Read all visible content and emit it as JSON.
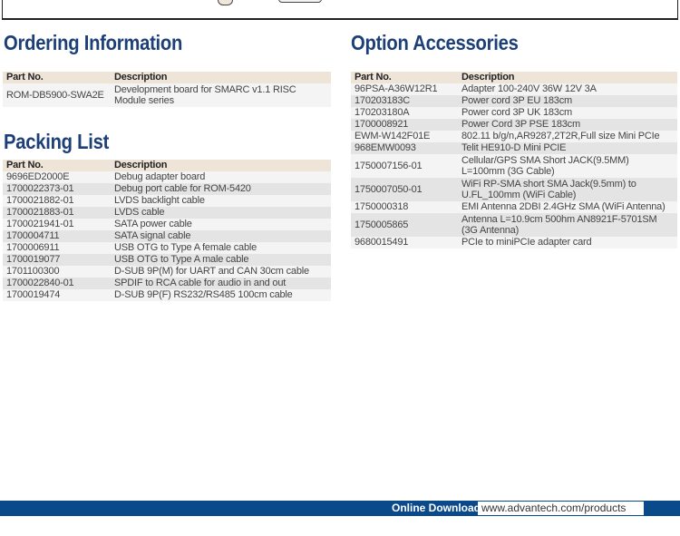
{
  "ordering": {
    "title": "Ordering Information",
    "headers": [
      "Part No.",
      "Description"
    ],
    "rows": [
      [
        "ROM-DB5900-SWA2E",
        "Development board for SMARC v1.1 RISC Module series"
      ]
    ]
  },
  "packing": {
    "title": "Packing List",
    "headers": [
      "Part No.",
      "Description"
    ],
    "rows": [
      [
        "9696ED2000E",
        "Debug adapter board"
      ],
      [
        "1700022373-01",
        "Debug port cable for ROM-5420"
      ],
      [
        "1700021882-01",
        "LVDS backlight cable"
      ],
      [
        "1700021883-01",
        "LVDS cable"
      ],
      [
        "1700021941-01",
        "SATA power cable"
      ],
      [
        "1700004711",
        "SATA signal cable"
      ],
      [
        "1700006911",
        "USB OTG to Type A female cable"
      ],
      [
        "1700019077",
        "USB OTG to Type A male cable"
      ],
      [
        "1701100300",
        "D-SUB 9P(M) for UART and CAN 30cm cable"
      ],
      [
        "1700022840-01",
        "SPDIF to RCA cable for audio in and out"
      ],
      [
        "1700019474",
        "D-SUB 9P(F) RS232/RS485 100cm cable"
      ]
    ]
  },
  "accessories": {
    "title": "Option Accessories",
    "headers": [
      "Part No.",
      "Description"
    ],
    "rows": [
      [
        "96PSA-A36W12R1",
        "Adapter 100-240V 36W 12V 3A"
      ],
      [
        "170203183C",
        "Power cord 3P EU 183cm"
      ],
      [
        "170203180A",
        "Power cord 3P UK 183cm"
      ],
      [
        "1700008921",
        "Power Cord 3P PSE 183cm"
      ],
      [
        "EWM-W142F01E",
        "802.11 b/g/n,AR9287,2T2R,Full size Mini PCIe"
      ],
      [
        "968EMW0093",
        "Telit HE910-D Mini PCIE"
      ],
      [
        "1750007156-01",
        "Cellular/GPS SMA Short JACK(9.5MM) L=100mm (3G Cable)"
      ],
      [
        "1750007050-01",
        "WiFi RP-SMA short SMA Jack(9.5mm) to U.FL_100mm (WiFi Cable)"
      ],
      [
        "1750000318",
        "EMI Antenna 2DBI 2.4GHz SMA (WiFi Antenna)"
      ],
      [
        "1750005865",
        "Antenna L=10.9cm 500hm AN8921F-5701SM (3G Antenna)"
      ],
      [
        "9680015491",
        "PCIe to miniPCIe adapter card"
      ]
    ]
  },
  "footer": {
    "label": "Online Download",
    "url": "www.advantech.com/products"
  },
  "colors": {
    "heading": "#1c3f78",
    "header_row": "#efe4d8",
    "footer_bar": "#0b4a8a"
  }
}
